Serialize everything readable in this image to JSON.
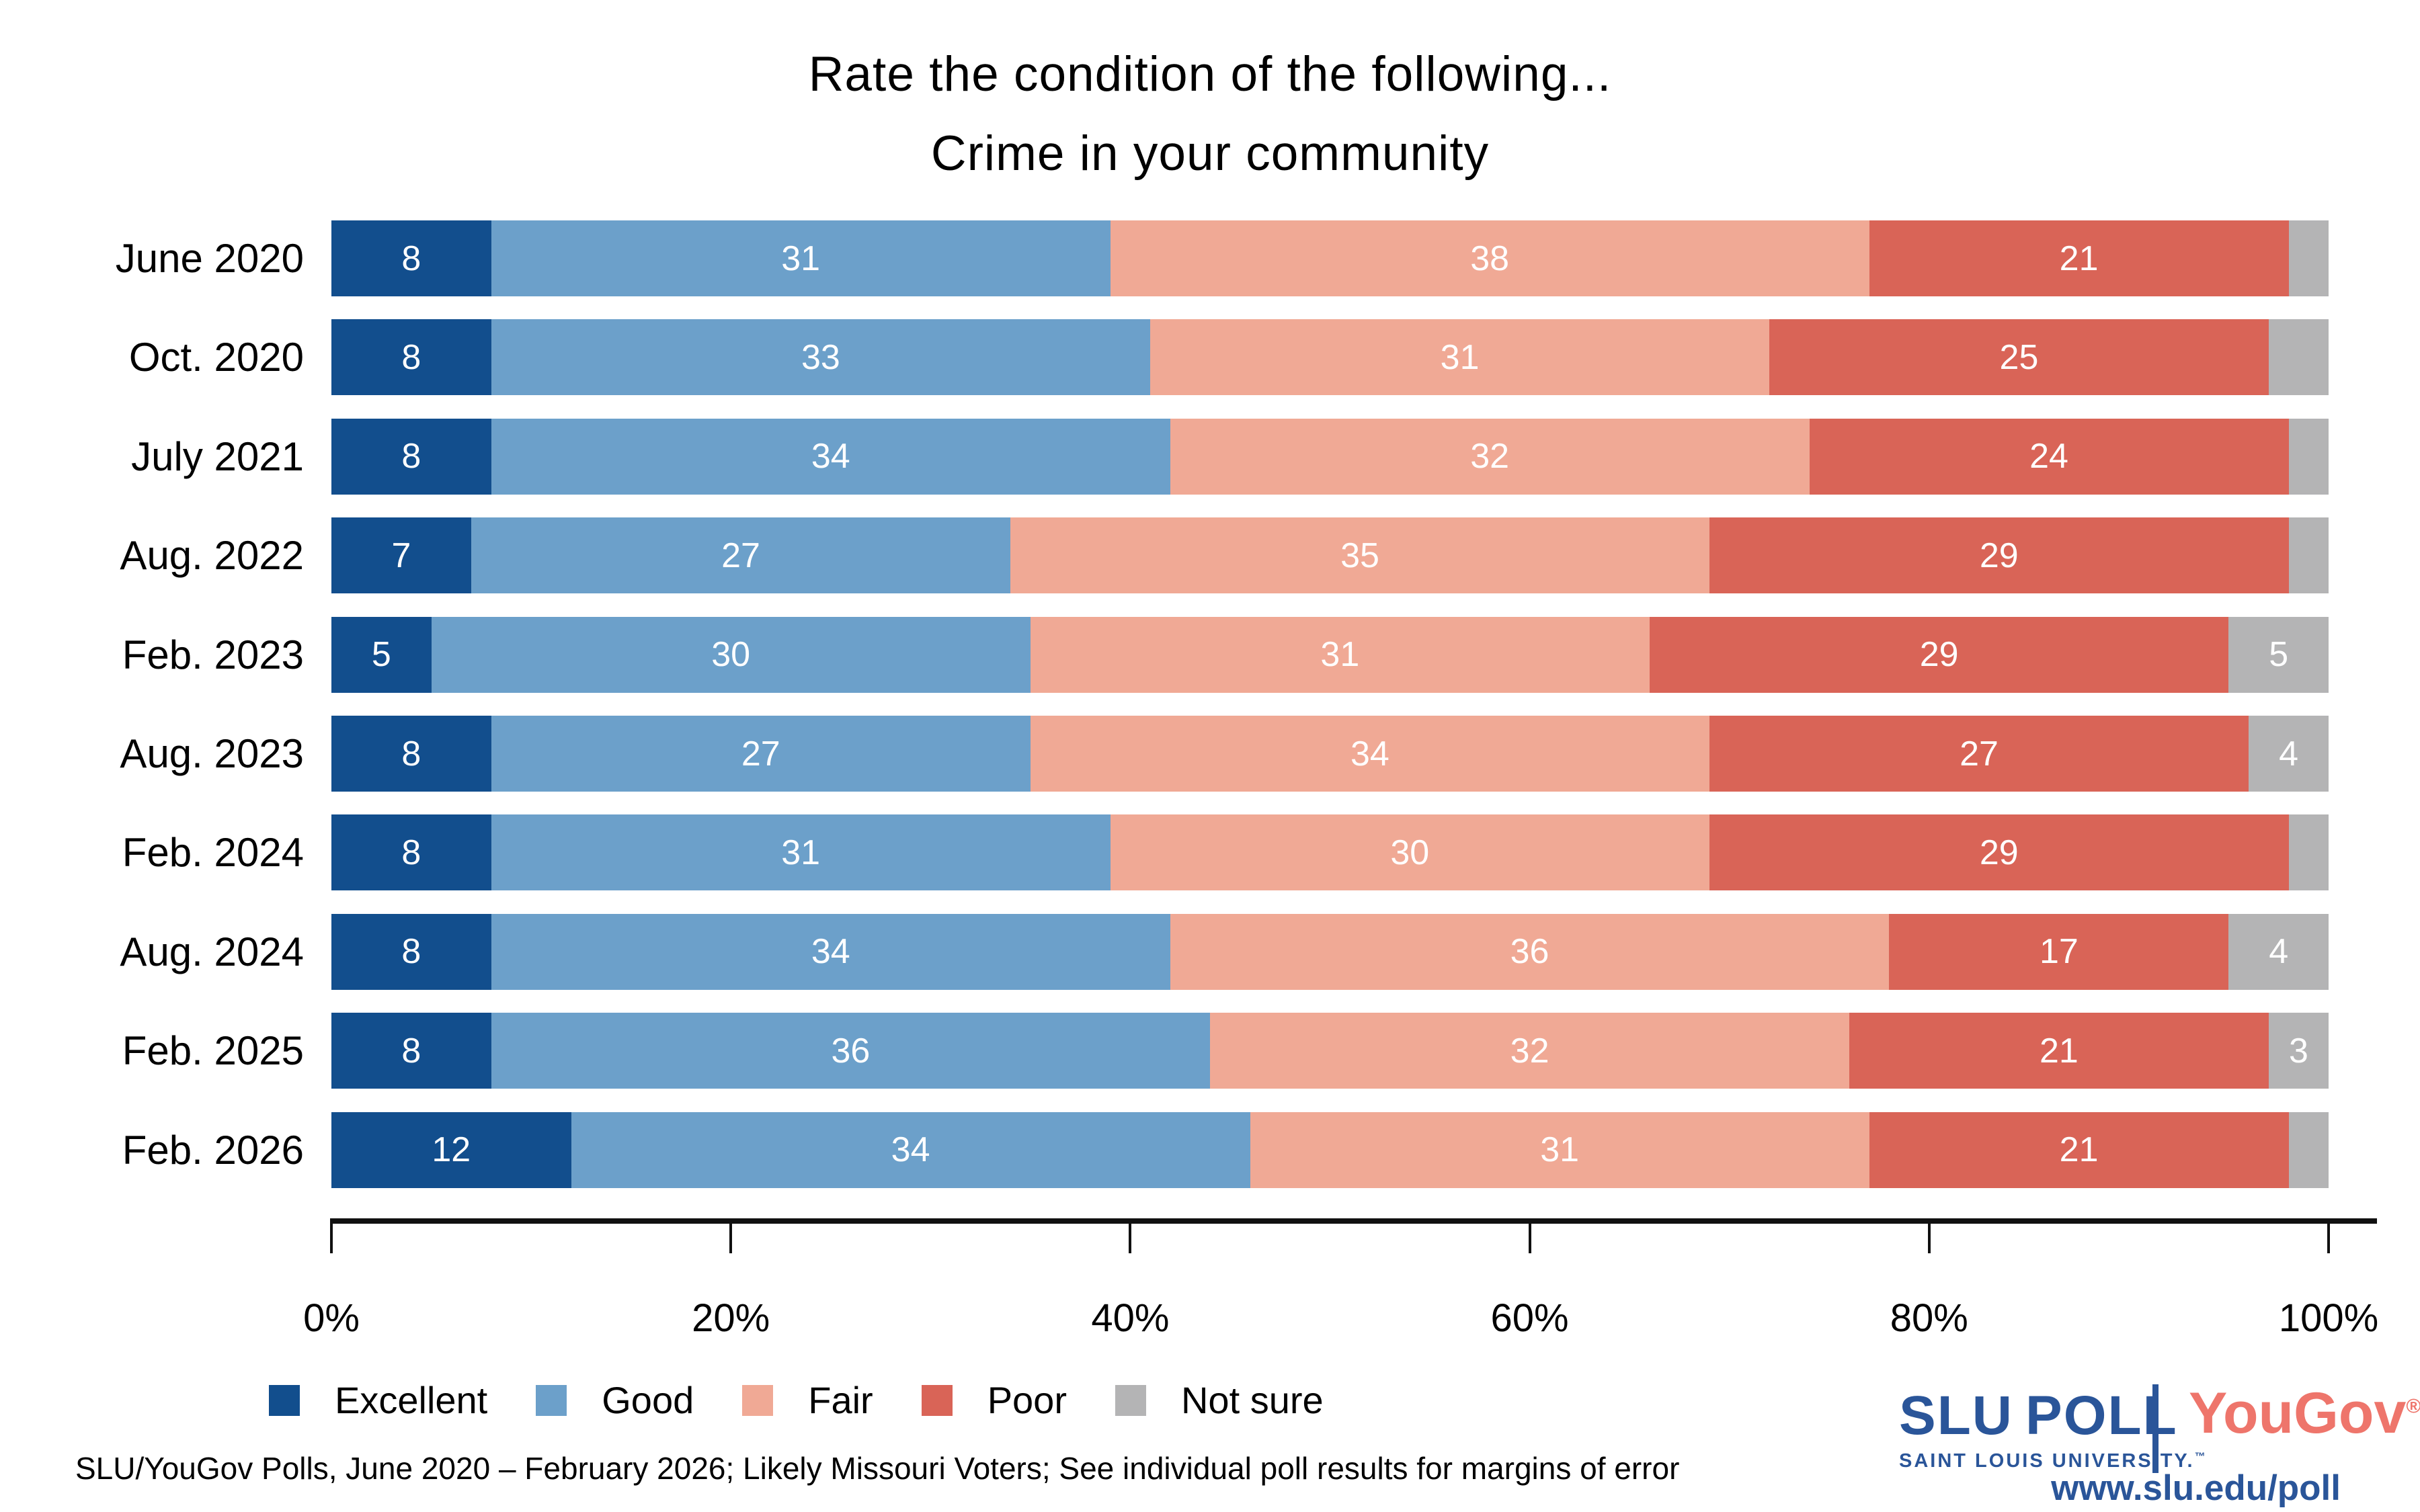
{
  "title": {
    "line1": "Rate the condition of the following...",
    "line2": "Crime in your community"
  },
  "axis": {
    "ticks": [
      "0%",
      "20%",
      "40%",
      "60%",
      "80%",
      "100%"
    ]
  },
  "footer": {
    "text": "SLU/YouGov Polls, June 2020 – February 2026; Likely Missouri Voters; See individual poll results for margins of error"
  },
  "branding": {
    "slu_word": "SLU",
    "poll_word": "POLL",
    "slu_subtitle": "SAINT LOUIS UNIVERSITY.",
    "tm": "™",
    "yougov": "YouGov",
    "reg": "®",
    "url": "www.slu.edu/poll"
  },
  "display_labels": [
    [
      "8",
      "31",
      "38",
      "21",
      ""
    ],
    [
      "8",
      "33",
      "31",
      "25",
      ""
    ],
    [
      "8",
      "34",
      "32",
      "24",
      ""
    ],
    [
      "7",
      "27",
      "35",
      "29",
      ""
    ],
    [
      "5",
      "30",
      "31",
      "29",
      "5"
    ],
    [
      "8",
      "27",
      "34",
      "27",
      "4"
    ],
    [
      "8",
      "31",
      "30",
      "29",
      ""
    ],
    [
      "8",
      "34",
      "36",
      "17",
      "4"
    ],
    [
      "8",
      "36",
      "32",
      "21",
      "3"
    ],
    [
      "12",
      "34",
      "31",
      "21",
      ""
    ]
  ],
  "chart_data": {
    "type": "bar",
    "stacked": true,
    "orientation": "horizontal",
    "title": "Rate the condition of the following... Crime in your community",
    "categories": [
      "June 2020",
      "Oct. 2020",
      "July 2021",
      "Aug. 2022",
      "Feb. 2023",
      "Aug. 2023",
      "Feb. 2024",
      "Aug. 2024",
      "Feb. 2025",
      "Feb. 2026"
    ],
    "series": [
      {
        "name": "Excellent",
        "color": "#124e8d",
        "values": [
          8,
          8,
          8,
          7,
          5,
          8,
          8,
          8,
          8,
          12
        ]
      },
      {
        "name": "Good",
        "color": "#6ca0ca",
        "values": [
          31,
          33,
          34,
          27,
          30,
          27,
          31,
          34,
          36,
          34
        ]
      },
      {
        "name": "Fair",
        "color": "#f0a995",
        "values": [
          38,
          31,
          32,
          35,
          31,
          34,
          30,
          36,
          32,
          31
        ]
      },
      {
        "name": "Poor",
        "color": "#d96457",
        "values": [
          21,
          25,
          24,
          29,
          29,
          27,
          29,
          17,
          21,
          21
        ]
      },
      {
        "name": "Not sure",
        "color": "#b4b4b5",
        "values": [
          2,
          3,
          2,
          2,
          5,
          4,
          2,
          4,
          3,
          2
        ]
      }
    ],
    "xlabel": "",
    "ylabel": "",
    "xlim": [
      0,
      100
    ],
    "x_tick_labels": [
      "0%",
      "20%",
      "40%",
      "60%",
      "80%",
      "100%"
    ],
    "grid": false,
    "value_labels": true,
    "legend_position": "bottom-left"
  }
}
